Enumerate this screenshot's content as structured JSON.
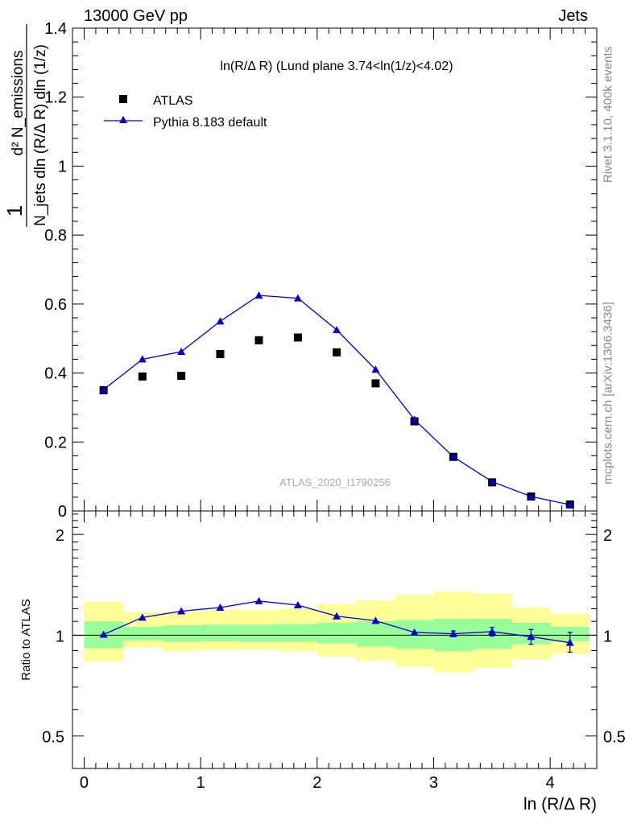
{
  "header": {
    "left_text": "13000 GeV pp",
    "right_text": "Jets"
  },
  "side_labels": {
    "rivet": "Rivet 3.1.10,  400k events",
    "mcplots": "mcplots.cern.ch [arXiv:1306.3436]"
  },
  "watermark": "ATLAS_2020_I1790256",
  "chart_data": [
    {
      "type": "scatter",
      "title": "ln(R/Δ R) (Lund plane 3.74<ln(1/z)<4.02)",
      "ylabel_num": "d² N_emissions",
      "ylabel_den": "N_jets dln (R/Δ R) dln (1/z)",
      "ylabel_prefix": "1",
      "xlabel": "ln (R/Δ R)",
      "xlim": [
        -0.1,
        4.4
      ],
      "ylim": [
        0,
        1.4
      ],
      "yticks": [
        0,
        0.2,
        0.4,
        0.6,
        0.8,
        1,
        1.2,
        1.4
      ],
      "ytick_labels": [
        "0",
        "0.2",
        "0.4",
        "0.6",
        "0.8",
        "1",
        "1.2",
        "1.4"
      ],
      "x": [
        0.167,
        0.5,
        0.834,
        1.168,
        1.5,
        1.835,
        2.168,
        2.502,
        2.835,
        3.169,
        3.502,
        3.836,
        4.17
      ],
      "series": [
        {
          "name": "ATLAS",
          "marker": "square",
          "color": "#000000",
          "values": [
            0.35,
            0.39,
            0.392,
            0.455,
            0.495,
            0.503,
            0.46,
            0.37,
            0.26,
            0.157,
            0.083,
            0.042,
            0.019
          ]
        },
        {
          "name": "Pythia 8.183 default",
          "marker": "triangle",
          "color": "#0000cc",
          "values": [
            0.352,
            0.44,
            0.462,
            0.55,
            0.625,
            0.617,
            0.525,
            0.41,
            0.265,
            0.157,
            0.085,
            0.042,
            0.018
          ]
        }
      ]
    },
    {
      "type": "line",
      "ylabel": "Ratio to ATLAS",
      "xlabel": "ln (R/Δ R)",
      "xlim": [
        -0.1,
        4.4
      ],
      "ylim": [
        0.4,
        2.35
      ],
      "yscale": "log",
      "yticks": [
        0.5,
        1,
        2
      ],
      "ytick_labels": [
        "0.5",
        "1",
        "2"
      ],
      "xticks": [
        0,
        1,
        2,
        3,
        4
      ],
      "xtick_labels": [
        "0",
        "1",
        "2",
        "3",
        "4"
      ],
      "reference_line": 1,
      "bin_edges": [
        0,
        0.334,
        0.667,
        1.001,
        1.334,
        1.668,
        2.002,
        2.335,
        2.669,
        3.002,
        3.336,
        3.669,
        4.003,
        4.337
      ],
      "band_yellow_low": [
        0.835,
        0.92,
        0.895,
        0.905,
        0.905,
        0.895,
        0.865,
        0.84,
        0.805,
        0.775,
        0.8,
        0.845,
        0.88
      ],
      "band_yellow_high": [
        1.26,
        1.17,
        1.18,
        1.19,
        1.19,
        1.2,
        1.24,
        1.27,
        1.32,
        1.35,
        1.33,
        1.21,
        1.16
      ],
      "band_green_low": [
        0.915,
        0.965,
        0.955,
        0.96,
        0.955,
        0.955,
        0.945,
        0.925,
        0.91,
        0.895,
        0.91,
        0.94,
        0.96
      ],
      "band_green_high": [
        1.1,
        1.06,
        1.07,
        1.075,
        1.075,
        1.08,
        1.09,
        1.1,
        1.11,
        1.12,
        1.12,
        1.09,
        1.06
      ],
      "x": [
        0.167,
        0.5,
        0.834,
        1.168,
        1.5,
        1.835,
        2.168,
        2.502,
        2.835,
        3.169,
        3.502,
        3.836,
        4.17
      ],
      "series": [
        {
          "name": "Pythia 8.183 default",
          "color": "#0000cc",
          "values": [
            1.005,
            1.13,
            1.18,
            1.21,
            1.265,
            1.23,
            1.14,
            1.105,
            1.02,
            1.01,
            1.025,
            0.99,
            0.95
          ],
          "err_low": [
            0,
            0,
            0,
            0,
            0,
            0,
            0,
            0,
            0,
            0.02,
            0.03,
            0.05,
            0.06
          ],
          "err_high": [
            0,
            0,
            0,
            0,
            0,
            0,
            0,
            0,
            0,
            0.02,
            0.03,
            0.05,
            0.07
          ]
        }
      ]
    }
  ]
}
